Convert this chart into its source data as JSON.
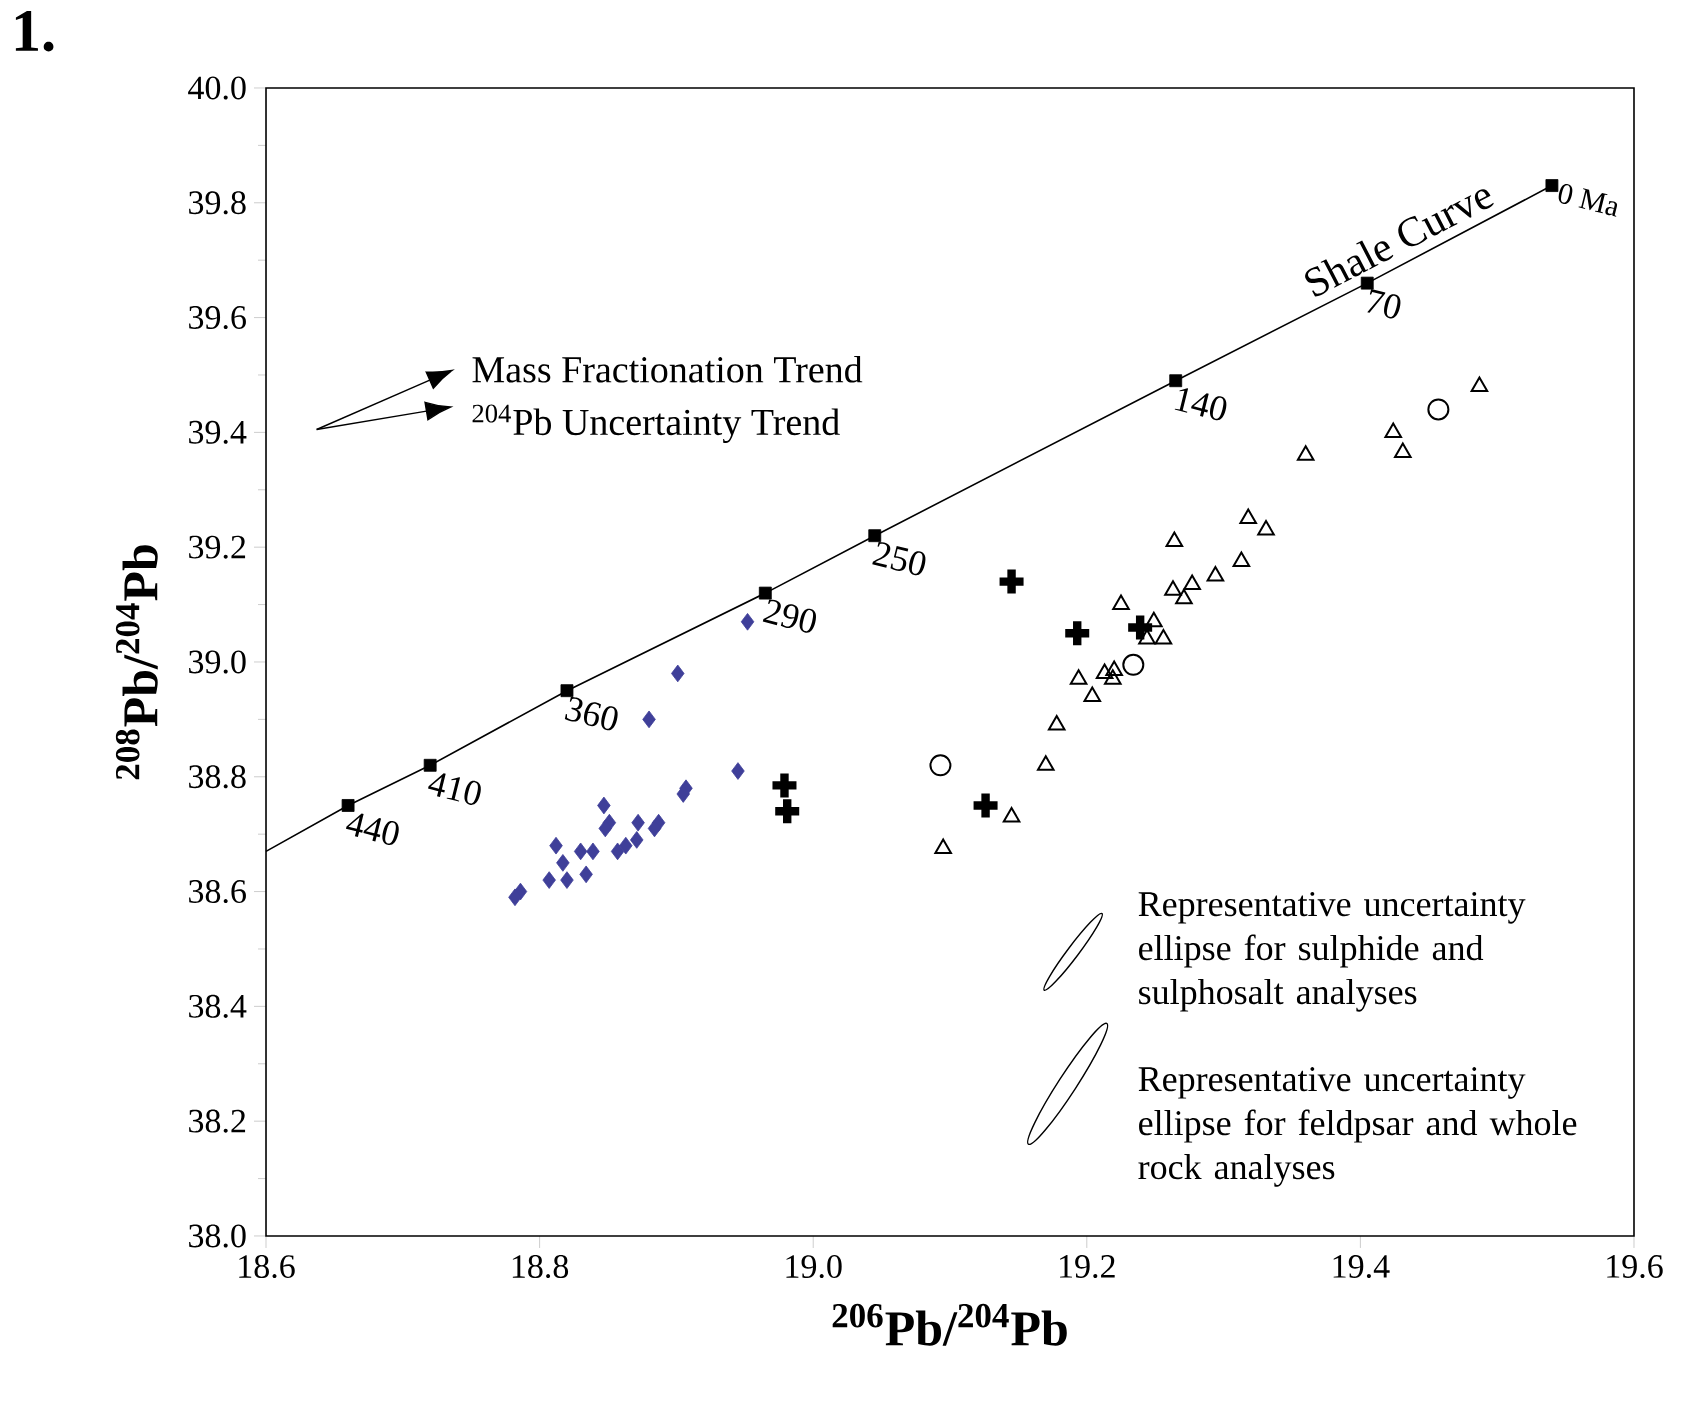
{
  "chart_data": {
    "type": "scatter",
    "title": "1.",
    "xlabel": "$^{206}$Pb/$^{204}$Pb",
    "ylabel": "$^{208}$Pb/$^{204}$Pb",
    "xlim": [
      18.6,
      19.6
    ],
    "ylim": [
      38.0,
      40.0
    ],
    "xticks": [
      {
        "value": 18.6,
        "label": "18.6"
      },
      {
        "value": 18.8,
        "label": "18.8"
      },
      {
        "value": 19.0,
        "label": "19.0"
      },
      {
        "value": 19.2,
        "label": "19.2"
      },
      {
        "value": 19.4,
        "label": "19.4"
      },
      {
        "value": 19.6,
        "label": "19.6"
      }
    ],
    "yticks": [
      {
        "value": 38.0,
        "label": "38.0"
      },
      {
        "value": 38.2,
        "label": "38.2"
      },
      {
        "value": 38.4,
        "label": "38.4"
      },
      {
        "value": 38.6,
        "label": "38.6"
      },
      {
        "value": 38.8,
        "label": "38.8"
      },
      {
        "value": 39.0,
        "label": "39.0"
      },
      {
        "value": 39.2,
        "label": "39.2"
      },
      {
        "value": 39.4,
        "label": "39.4"
      },
      {
        "value": 39.6,
        "label": "39.6"
      },
      {
        "value": 39.8,
        "label": "39.8"
      },
      {
        "value": 40.0,
        "label": "40.0"
      }
    ],
    "series": [
      {
        "type": "line",
        "name": "Shale Curve",
        "color": "#000000",
        "marker": "none",
        "x": [
          18.6,
          18.66,
          18.72,
          18.82,
          18.965,
          19.045,
          19.265,
          19.405,
          19.54
        ],
        "values": [
          38.67,
          38.75,
          38.82,
          38.95,
          39.12,
          39.22,
          39.49,
          39.66,
          39.83
        ]
      },
      {
        "color": "#000000",
        "marker": "square",
        "x": [
          18.66,
          18.72,
          18.82,
          18.965,
          19.045,
          19.265,
          19.405,
          19.54
        ],
        "values": [
          38.75,
          38.82,
          38.95,
          39.12,
          39.22,
          39.49,
          39.66,
          39.83
        ]
      },
      {
        "color": "#3f3f99",
        "marker": "diamond",
        "x": [
          18.952,
          18.901,
          18.88,
          18.945,
          18.907,
          18.905,
          18.847,
          18.851,
          18.848,
          18.872,
          18.887,
          18.884,
          18.812,
          18.83,
          18.839,
          18.857,
          18.863,
          18.871,
          18.817,
          18.807,
          18.82,
          18.834,
          18.786,
          18.782
        ],
        "values": [
          39.07,
          38.98,
          38.9,
          38.81,
          38.78,
          38.77,
          38.75,
          38.72,
          38.71,
          38.72,
          38.72,
          38.71,
          38.68,
          38.67,
          38.67,
          38.67,
          38.68,
          38.69,
          38.65,
          38.62,
          38.62,
          38.63,
          38.6,
          38.59
        ]
      },
      {
        "color": "#000000",
        "marker": "cross",
        "x": [
          19.145,
          19.193,
          19.239,
          19.126,
          18.979,
          18.981
        ],
        "values": [
          39.14,
          39.05,
          39.06,
          38.75,
          38.785,
          38.74
        ]
      },
      {
        "color": "#000000",
        "marker": "circle",
        "x": [
          19.093,
          19.234,
          19.457
        ],
        "values": [
          38.82,
          38.995,
          39.44
        ]
      },
      {
        "color": "#000000",
        "marker": "triangle",
        "x": [
          19.487,
          19.424,
          19.431,
          19.36,
          19.264,
          19.318,
          19.331,
          19.313,
          19.294,
          19.263,
          19.277,
          19.271,
          19.249,
          19.256,
          19.225,
          19.244,
          19.194,
          19.213,
          19.22,
          19.219,
          19.204,
          19.178,
          19.17,
          19.145,
          19.095
        ],
        "values": [
          39.48,
          39.4,
          39.365,
          39.36,
          39.21,
          39.25,
          39.23,
          39.175,
          39.15,
          39.125,
          39.135,
          39.11,
          39.07,
          39.04,
          39.1,
          39.04,
          38.97,
          38.98,
          38.985,
          38.97,
          38.94,
          38.89,
          38.82,
          38.73,
          38.675
        ]
      }
    ],
    "annotations": [
      "Mass Fractionation Trend",
      "$^{204}$Pb Uncertainty Trend",
      "Representative uncertainty ellipse for sulphide and sulphosalt analyses",
      "Representative uncertainty ellipse for feldpsar and whole rock analyses",
      {
        "text": "440",
        "x": 18.66,
        "y": 38.75
      },
      {
        "text": "410",
        "x": 18.72,
        "y": 38.82
      },
      {
        "text": "360",
        "x": 18.82,
        "y": 38.95
      },
      {
        "text": "290",
        "x": 18.965,
        "y": 39.12
      },
      {
        "text": "250",
        "x": 19.045,
        "y": 39.22
      },
      {
        "text": "140",
        "x": 19.265,
        "y": 39.49
      },
      {
        "text": "70",
        "x": 19.405,
        "y": 39.66
      },
      {
        "text": "0 Ma",
        "x": 19.54,
        "y": 39.83
      }
    ]
  }
}
